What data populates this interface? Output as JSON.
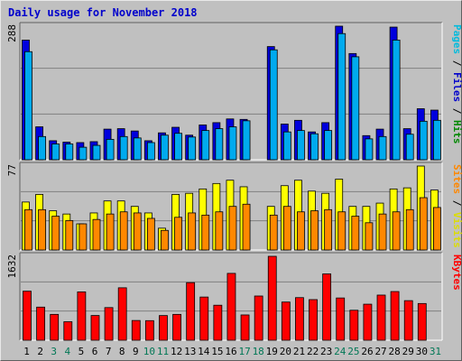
{
  "title": "Daily usage for November 2018",
  "chart_data": [
    {
      "type": "bar",
      "panel": "top",
      "categories": [
        "1",
        "2",
        "3",
        "4",
        "5",
        "6",
        "7",
        "8",
        "9",
        "10",
        "11",
        "12",
        "13",
        "14",
        "15",
        "16",
        "17",
        "18",
        "19",
        "20",
        "21",
        "22",
        "23",
        "24",
        "25",
        "26",
        "27",
        "28",
        "29",
        "30",
        "31"
      ],
      "ymax_label": "288",
      "ylim": [
        0,
        288
      ],
      "legend": [
        "Pages",
        "Files",
        "Hits"
      ],
      "legend_colors": [
        "#00bbdd",
        "#0000cc",
        "#008800"
      ],
      "series": [
        {
          "name": "Hits",
          "color": "#0000dd",
          "values": [
            258,
            71,
            41,
            38,
            37,
            39,
            66,
            67,
            62,
            41,
            58,
            70,
            53,
            75,
            80,
            88,
            87,
            0,
            244,
            77,
            85,
            60,
            80,
            288,
            229,
            52,
            66,
            286,
            67,
            110,
            107
          ]
        },
        {
          "name": "Files",
          "color": "#00aaee",
          "values": [
            233,
            50,
            34,
            34,
            27,
            31,
            44,
            50,
            47,
            37,
            53,
            57,
            49,
            63,
            67,
            71,
            84,
            0,
            237,
            60,
            63,
            56,
            63,
            272,
            222,
            45,
            50,
            258,
            55,
            83,
            85
          ]
        }
      ]
    },
    {
      "type": "bar",
      "panel": "middle",
      "categories": [
        "1",
        "2",
        "3",
        "4",
        "5",
        "6",
        "7",
        "8",
        "9",
        "10",
        "11",
        "12",
        "13",
        "14",
        "15",
        "16",
        "17",
        "18",
        "19",
        "20",
        "21",
        "22",
        "23",
        "24",
        "25",
        "26",
        "27",
        "28",
        "29",
        "30",
        "31"
      ],
      "ymax_label": "77",
      "ylim": [
        0,
        77
      ],
      "legend": [
        "Sites",
        "Visits"
      ],
      "legend_colors": [
        "#ff8800",
        "#dddd00"
      ],
      "series": [
        {
          "name": "Visits",
          "color": "#ffff00",
          "values": [
            44,
            51,
            36,
            33,
            24,
            34,
            45,
            45,
            40,
            34,
            20,
            51,
            52,
            56,
            61,
            64,
            58,
            0,
            40,
            59,
            64,
            54,
            52,
            65,
            40,
            40,
            43,
            56,
            57,
            77,
            55
          ]
        },
        {
          "name": "Sites",
          "color": "#ff8800",
          "values": [
            37,
            37,
            31,
            27,
            24,
            28,
            33,
            35,
            34,
            29,
            18,
            30,
            34,
            32,
            35,
            40,
            42,
            0,
            32,
            40,
            35,
            36,
            37,
            35,
            31,
            25,
            33,
            35,
            37,
            48,
            39
          ]
        }
      ]
    },
    {
      "type": "bar",
      "panel": "bottom",
      "categories": [
        "1",
        "2",
        "3",
        "4",
        "5",
        "6",
        "7",
        "8",
        "9",
        "10",
        "11",
        "12",
        "13",
        "14",
        "15",
        "16",
        "17",
        "18",
        "19",
        "20",
        "21",
        "22",
        "23",
        "24",
        "25",
        "26",
        "27",
        "28",
        "29",
        "30",
        "31"
      ],
      "ymax_label": "1632",
      "ylim": [
        0,
        1632
      ],
      "legend": [
        "KBytes"
      ],
      "legend_colors": [
        "#ff0000"
      ],
      "series": [
        {
          "name": "KBytes",
          "color": "#ff0000",
          "values": [
            954,
            644,
            503,
            360,
            940,
            481,
            635,
            1020,
            384,
            381,
            480,
            503,
            1120,
            840,
            681,
            1300,
            492,
            860,
            1632,
            743,
            829,
            790,
            1290,
            822,
            583,
            701,
            878,
            947,
            770,
            714,
            0
          ]
        }
      ]
    }
  ],
  "x_label_colors": {
    "weekday": "#000000",
    "weekend": "#007755"
  },
  "weekend_days": [
    "3",
    "4",
    "10",
    "11",
    "17",
    "18",
    "24",
    "25",
    "31"
  ]
}
